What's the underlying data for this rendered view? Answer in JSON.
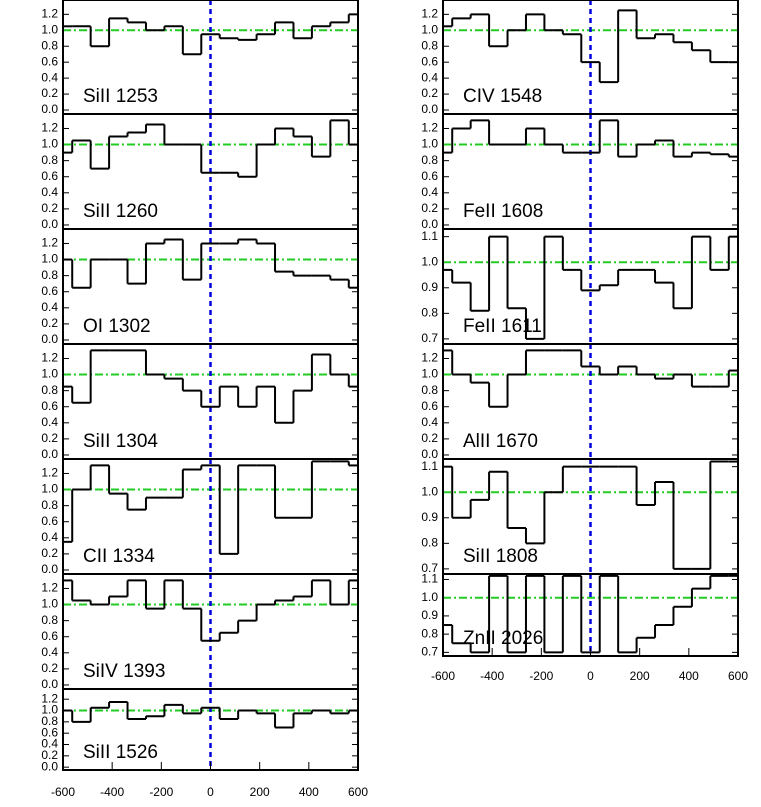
{
  "chart_data": [
    {
      "type": "step",
      "label": "SiII 1253",
      "color": "#000000",
      "hline": 1,
      "hline_color": "#22cc22",
      "vline": 0,
      "vline_color": "#0000dd",
      "xlim": [
        -600,
        600
      ],
      "ylim": [
        -0.05,
        1.38
      ],
      "yticks": [
        {
          "value": 0,
          "label": "0.0"
        },
        {
          "value": 0.2,
          "label": "0.2"
        },
        {
          "value": 0.4,
          "label": "0.4"
        },
        {
          "value": 0.6,
          "label": "0.6"
        },
        {
          "value": 0.8,
          "label": "0.8"
        },
        {
          "value": 1,
          "label": "1.0"
        },
        {
          "value": 1.2,
          "label": "1.2"
        }
      ],
      "x": [
        -600,
        -525,
        -450,
        -375,
        -300,
        -225,
        -150,
        -75,
        0,
        75,
        150,
        225,
        300,
        375,
        450,
        525,
        600
      ],
      "values": [
        1.05,
        1.05,
        0.8,
        1.15,
        1.1,
        1.0,
        1.05,
        0.7,
        0.95,
        0.9,
        0.88,
        0.95,
        1.1,
        0.9,
        1.05,
        1.1,
        1.2
      ]
    },
    {
      "type": "step",
      "label": "SiII 1260",
      "color": "#000000",
      "hline": 1,
      "hline_color": "#22cc22",
      "vline": 0,
      "vline_color": "#0000dd",
      "xlim": [
        -600,
        600
      ],
      "ylim": [
        -0.05,
        1.38
      ],
      "yticks": [
        {
          "value": 0,
          "label": "0.0"
        },
        {
          "value": 0.2,
          "label": "0.2"
        },
        {
          "value": 0.4,
          "label": "0.4"
        },
        {
          "value": 0.6,
          "label": "0.6"
        },
        {
          "value": 0.8,
          "label": "0.8"
        },
        {
          "value": 1,
          "label": "1.0"
        },
        {
          "value": 1.2,
          "label": "1.2"
        }
      ],
      "x": [
        -600,
        -525,
        -450,
        -375,
        -300,
        -225,
        -150,
        -75,
        0,
        75,
        150,
        225,
        300,
        375,
        450,
        525,
        600
      ],
      "values": [
        0.9,
        1.05,
        0.7,
        1.1,
        1.15,
        1.25,
        1.0,
        1.0,
        0.65,
        0.65,
        0.6,
        1.0,
        1.2,
        1.1,
        0.85,
        1.3,
        1.0
      ]
    },
    {
      "type": "step",
      "label": "OI 1302",
      "color": "#000000",
      "hline": 1,
      "hline_color": "#22cc22",
      "vline": 0,
      "vline_color": "#0000dd",
      "xlim": [
        -600,
        600
      ],
      "ylim": [
        -0.05,
        1.38
      ],
      "yticks": [
        {
          "value": 0,
          "label": "0.0"
        },
        {
          "value": 0.2,
          "label": "0.2"
        },
        {
          "value": 0.4,
          "label": "0.4"
        },
        {
          "value": 0.6,
          "label": "0.6"
        },
        {
          "value": 0.8,
          "label": "0.8"
        },
        {
          "value": 1,
          "label": "1.0"
        },
        {
          "value": 1.2,
          "label": "1.2"
        }
      ],
      "x": [
        -600,
        -525,
        -450,
        -375,
        -300,
        -225,
        -150,
        -75,
        0,
        75,
        150,
        225,
        300,
        375,
        450,
        525,
        600
      ],
      "values": [
        1.0,
        0.65,
        1.0,
        1.0,
        0.7,
        1.2,
        1.25,
        0.75,
        1.2,
        1.2,
        1.25,
        1.2,
        0.85,
        0.8,
        0.8,
        0.75,
        0.65
      ]
    },
    {
      "type": "step",
      "label": "SiII 1304",
      "color": "#000000",
      "hline": 1,
      "hline_color": "#22cc22",
      "vline": 0,
      "vline_color": "#0000dd",
      "xlim": [
        -600,
        600
      ],
      "ylim": [
        -0.05,
        1.38
      ],
      "yticks": [
        {
          "value": 0,
          "label": "0.0"
        },
        {
          "value": 0.2,
          "label": "0.2"
        },
        {
          "value": 0.4,
          "label": "0.4"
        },
        {
          "value": 0.6,
          "label": "0.6"
        },
        {
          "value": 0.8,
          "label": "0.8"
        },
        {
          "value": 1,
          "label": "1.0"
        },
        {
          "value": 1.2,
          "label": "1.2"
        }
      ],
      "x": [
        -600,
        -525,
        -450,
        -375,
        -300,
        -225,
        -150,
        -75,
        0,
        75,
        150,
        225,
        300,
        375,
        450,
        525,
        600
      ],
      "values": [
        0.85,
        0.65,
        1.3,
        1.3,
        1.3,
        1.0,
        0.95,
        0.8,
        0.6,
        0.85,
        0.6,
        0.85,
        0.4,
        0.8,
        1.25,
        1.0,
        0.85
      ]
    },
    {
      "type": "step",
      "label": "CII 1334",
      "color": "#000000",
      "hline": 1,
      "hline_color": "#22cc22",
      "vline": 0,
      "vline_color": "#0000dd",
      "xlim": [
        -600,
        600
      ],
      "ylim": [
        -0.05,
        1.38
      ],
      "yticks": [
        {
          "value": 0,
          "label": "0.0"
        },
        {
          "value": 0.2,
          "label": "0.2"
        },
        {
          "value": 0.4,
          "label": "0.4"
        },
        {
          "value": 0.6,
          "label": "0.6"
        },
        {
          "value": 0.8,
          "label": "0.8"
        },
        {
          "value": 1,
          "label": "1.0"
        },
        {
          "value": 1.2,
          "label": "1.2"
        }
      ],
      "x": [
        -600,
        -525,
        -450,
        -375,
        -300,
        -225,
        -150,
        -75,
        0,
        75,
        150,
        225,
        300,
        375,
        450,
        525,
        600
      ],
      "values": [
        0.35,
        1.0,
        1.3,
        0.95,
        0.75,
        0.9,
        0.9,
        1.25,
        1.3,
        0.2,
        1.3,
        1.3,
        0.65,
        0.65,
        1.35,
        1.35,
        1.3
      ]
    },
    {
      "type": "step",
      "label": "SiIV 1393",
      "color": "#000000",
      "hline": 1,
      "hline_color": "#22cc22",
      "vline": 0,
      "vline_color": "#0000dd",
      "xlim": [
        -600,
        600
      ],
      "ylim": [
        -0.05,
        1.38
      ],
      "yticks": [
        {
          "value": 0,
          "label": "0.0"
        },
        {
          "value": 0.2,
          "label": "0.2"
        },
        {
          "value": 0.4,
          "label": "0.4"
        },
        {
          "value": 0.6,
          "label": "0.6"
        },
        {
          "value": 0.8,
          "label": "0.8"
        },
        {
          "value": 1,
          "label": "1.0"
        },
        {
          "value": 1.2,
          "label": "1.2"
        }
      ],
      "x": [
        -600,
        -525,
        -450,
        -375,
        -300,
        -225,
        -150,
        -75,
        0,
        75,
        150,
        225,
        300,
        375,
        450,
        525,
        600
      ],
      "values": [
        1.3,
        1.05,
        1.0,
        1.1,
        1.3,
        0.95,
        1.3,
        0.95,
        0.55,
        0.65,
        0.8,
        1.0,
        1.05,
        1.1,
        1.3,
        1.0,
        1.3
      ]
    },
    {
      "type": "step",
      "label": "SiII 1526",
      "color": "#000000",
      "hline": 1,
      "hline_color": "#22cc22",
      "vline": 0,
      "vline_color": "#0000dd",
      "xlim": [
        -600,
        600
      ],
      "ylim": [
        -0.05,
        1.38
      ],
      "yticks": [
        {
          "value": 0,
          "label": "0.0"
        },
        {
          "value": 0.2,
          "label": "0.2"
        },
        {
          "value": 0.4,
          "label": "0.4"
        },
        {
          "value": 0.6,
          "label": "0.6"
        },
        {
          "value": 0.8,
          "label": "0.8"
        },
        {
          "value": 1,
          "label": "1.0"
        },
        {
          "value": 1.2,
          "label": "1.2"
        }
      ],
      "xticks": [
        -600,
        -400,
        -200,
        0,
        200,
        400,
        600
      ],
      "x": [
        -600,
        -525,
        -450,
        -375,
        -300,
        -225,
        -150,
        -75,
        0,
        75,
        150,
        225,
        300,
        375,
        450,
        525,
        600
      ],
      "values": [
        1.0,
        0.8,
        1.05,
        1.15,
        0.85,
        0.9,
        1.1,
        0.95,
        1.05,
        0.85,
        1.0,
        0.95,
        0.7,
        0.95,
        1.0,
        0.95,
        1.0
      ]
    },
    {
      "type": "step",
      "label": "CIV 1548",
      "color": "#000000",
      "hline": 1,
      "hline_color": "#22cc22",
      "vline": 0,
      "vline_color": "#0000dd",
      "xlim": [
        -600,
        600
      ],
      "ylim": [
        -0.05,
        1.38
      ],
      "yticks": [
        {
          "value": 0,
          "label": "0.0"
        },
        {
          "value": 0.2,
          "label": "0.2"
        },
        {
          "value": 0.4,
          "label": "0.4"
        },
        {
          "value": 0.6,
          "label": "0.6"
        },
        {
          "value": 0.8,
          "label": "0.8"
        },
        {
          "value": 1,
          "label": "1.0"
        },
        {
          "value": 1.2,
          "label": "1.2"
        }
      ],
      "x": [
        -600,
        -525,
        -450,
        -375,
        -300,
        -225,
        -150,
        -75,
        0,
        75,
        150,
        225,
        300,
        375,
        450,
        525,
        600
      ],
      "values": [
        1.05,
        1.15,
        1.2,
        0.8,
        1.0,
        1.2,
        1.0,
        0.95,
        0.6,
        0.35,
        1.25,
        0.9,
        0.95,
        0.85,
        0.75,
        0.6,
        0.6
      ]
    },
    {
      "type": "step",
      "label": "FeII 1608",
      "color": "#000000",
      "hline": 1,
      "hline_color": "#22cc22",
      "vline": 0,
      "vline_color": "#0000dd",
      "xlim": [
        -600,
        600
      ],
      "ylim": [
        -0.05,
        1.38
      ],
      "yticks": [
        {
          "value": 0,
          "label": "0.0"
        },
        {
          "value": 0.2,
          "label": "0.2"
        },
        {
          "value": 0.4,
          "label": "0.4"
        },
        {
          "value": 0.6,
          "label": "0.6"
        },
        {
          "value": 0.8,
          "label": "0.8"
        },
        {
          "value": 1,
          "label": "1.0"
        },
        {
          "value": 1.2,
          "label": "1.2"
        }
      ],
      "x": [
        -600,
        -525,
        -450,
        -375,
        -300,
        -225,
        -150,
        -75,
        0,
        75,
        150,
        225,
        300,
        375,
        450,
        525,
        600
      ],
      "values": [
        0.9,
        1.2,
        1.3,
        1.0,
        1.0,
        1.2,
        1.0,
        0.9,
        0.9,
        1.3,
        0.85,
        1.0,
        1.05,
        0.85,
        0.9,
        0.88,
        0.85
      ]
    },
    {
      "type": "step",
      "label": "FeII 1611",
      "color": "#000000",
      "hline": 1,
      "hline_color": "#22cc22",
      "vline": 0,
      "vline_color": "#0000dd",
      "xlim": [
        -600,
        600
      ],
      "ylim": [
        0.68,
        1.13
      ],
      "yticks": [
        {
          "value": 0.7,
          "label": "0.7"
        },
        {
          "value": 0.8,
          "label": "0.8"
        },
        {
          "value": 0.9,
          "label": "0.9"
        },
        {
          "value": 1,
          "label": "1.0"
        },
        {
          "value": 1.1,
          "label": "1.1"
        }
      ],
      "x": [
        -600,
        -525,
        -450,
        -375,
        -300,
        -225,
        -150,
        -75,
        0,
        75,
        150,
        225,
        300,
        375,
        450,
        525,
        600
      ],
      "values": [
        0.97,
        0.92,
        0.81,
        1.1,
        0.82,
        0.7,
        1.1,
        0.97,
        0.89,
        0.91,
        0.97,
        0.97,
        0.92,
        0.82,
        1.1,
        0.97,
        1.1
      ]
    },
    {
      "type": "step",
      "label": "AlII 1670",
      "color": "#000000",
      "hline": 1,
      "hline_color": "#22cc22",
      "vline": 0,
      "vline_color": "#0000dd",
      "xlim": [
        -600,
        600
      ],
      "ylim": [
        -0.05,
        1.38
      ],
      "yticks": [
        {
          "value": 0,
          "label": "0.0"
        },
        {
          "value": 0.2,
          "label": "0.2"
        },
        {
          "value": 0.4,
          "label": "0.4"
        },
        {
          "value": 0.6,
          "label": "0.6"
        },
        {
          "value": 0.8,
          "label": "0.8"
        },
        {
          "value": 1,
          "label": "1.0"
        },
        {
          "value": 1.2,
          "label": "1.2"
        }
      ],
      "x": [
        -600,
        -525,
        -450,
        -375,
        -300,
        -225,
        -150,
        -75,
        0,
        75,
        150,
        225,
        300,
        375,
        450,
        525,
        600
      ],
      "values": [
        1.3,
        1.0,
        0.9,
        0.6,
        1.0,
        1.3,
        1.3,
        1.3,
        1.1,
        1.0,
        1.1,
        1.0,
        0.95,
        1.0,
        0.85,
        0.85,
        1.05
      ]
    },
    {
      "type": "step",
      "label": "SiII 1808",
      "color": "#000000",
      "hline": 1,
      "hline_color": "#22cc22",
      "vline": 0,
      "vline_color": "#0000dd",
      "xlim": [
        -600,
        600
      ],
      "ylim": [
        0.68,
        1.13
      ],
      "yticks": [
        {
          "value": 0.7,
          "label": "0.7"
        },
        {
          "value": 0.8,
          "label": "0.8"
        },
        {
          "value": 0.9,
          "label": "0.9"
        },
        {
          "value": 1,
          "label": "1.0"
        },
        {
          "value": 1.1,
          "label": "1.1"
        }
      ],
      "x": [
        -600,
        -525,
        -450,
        -375,
        -300,
        -225,
        -150,
        -75,
        0,
        75,
        150,
        225,
        300,
        375,
        450,
        525,
        600
      ],
      "values": [
        1.1,
        0.9,
        0.97,
        1.08,
        0.86,
        0.8,
        1.0,
        1.1,
        1.1,
        1.1,
        1.1,
        0.95,
        1.04,
        0.7,
        0.7,
        1.12,
        1.12
      ]
    },
    {
      "type": "step",
      "label": "ZnII 2026",
      "color": "#000000",
      "hline": 1,
      "hline_color": "#22cc22",
      "vline": 0,
      "vline_color": "#0000dd",
      "xlim": [
        -600,
        600
      ],
      "ylim": [
        0.68,
        1.13
      ],
      "yticks": [
        {
          "value": 0.7,
          "label": "0.7"
        },
        {
          "value": 0.8,
          "label": "0.8"
        },
        {
          "value": 0.9,
          "label": "0.9"
        },
        {
          "value": 1,
          "label": "1.0"
        },
        {
          "value": 1.1,
          "label": "1.1"
        }
      ],
      "xticks": [
        -600,
        -400,
        -200,
        0,
        200,
        400,
        600
      ],
      "x": [
        -600,
        -525,
        -450,
        -375,
        -300,
        -225,
        -150,
        -75,
        0,
        75,
        150,
        225,
        300,
        375,
        450,
        525,
        600
      ],
      "values": [
        0.85,
        0.75,
        0.7,
        1.12,
        0.7,
        1.12,
        0.7,
        1.12,
        0.7,
        1.12,
        0.7,
        0.78,
        0.85,
        0.95,
        1.05,
        1.12,
        1.12
      ]
    }
  ]
}
